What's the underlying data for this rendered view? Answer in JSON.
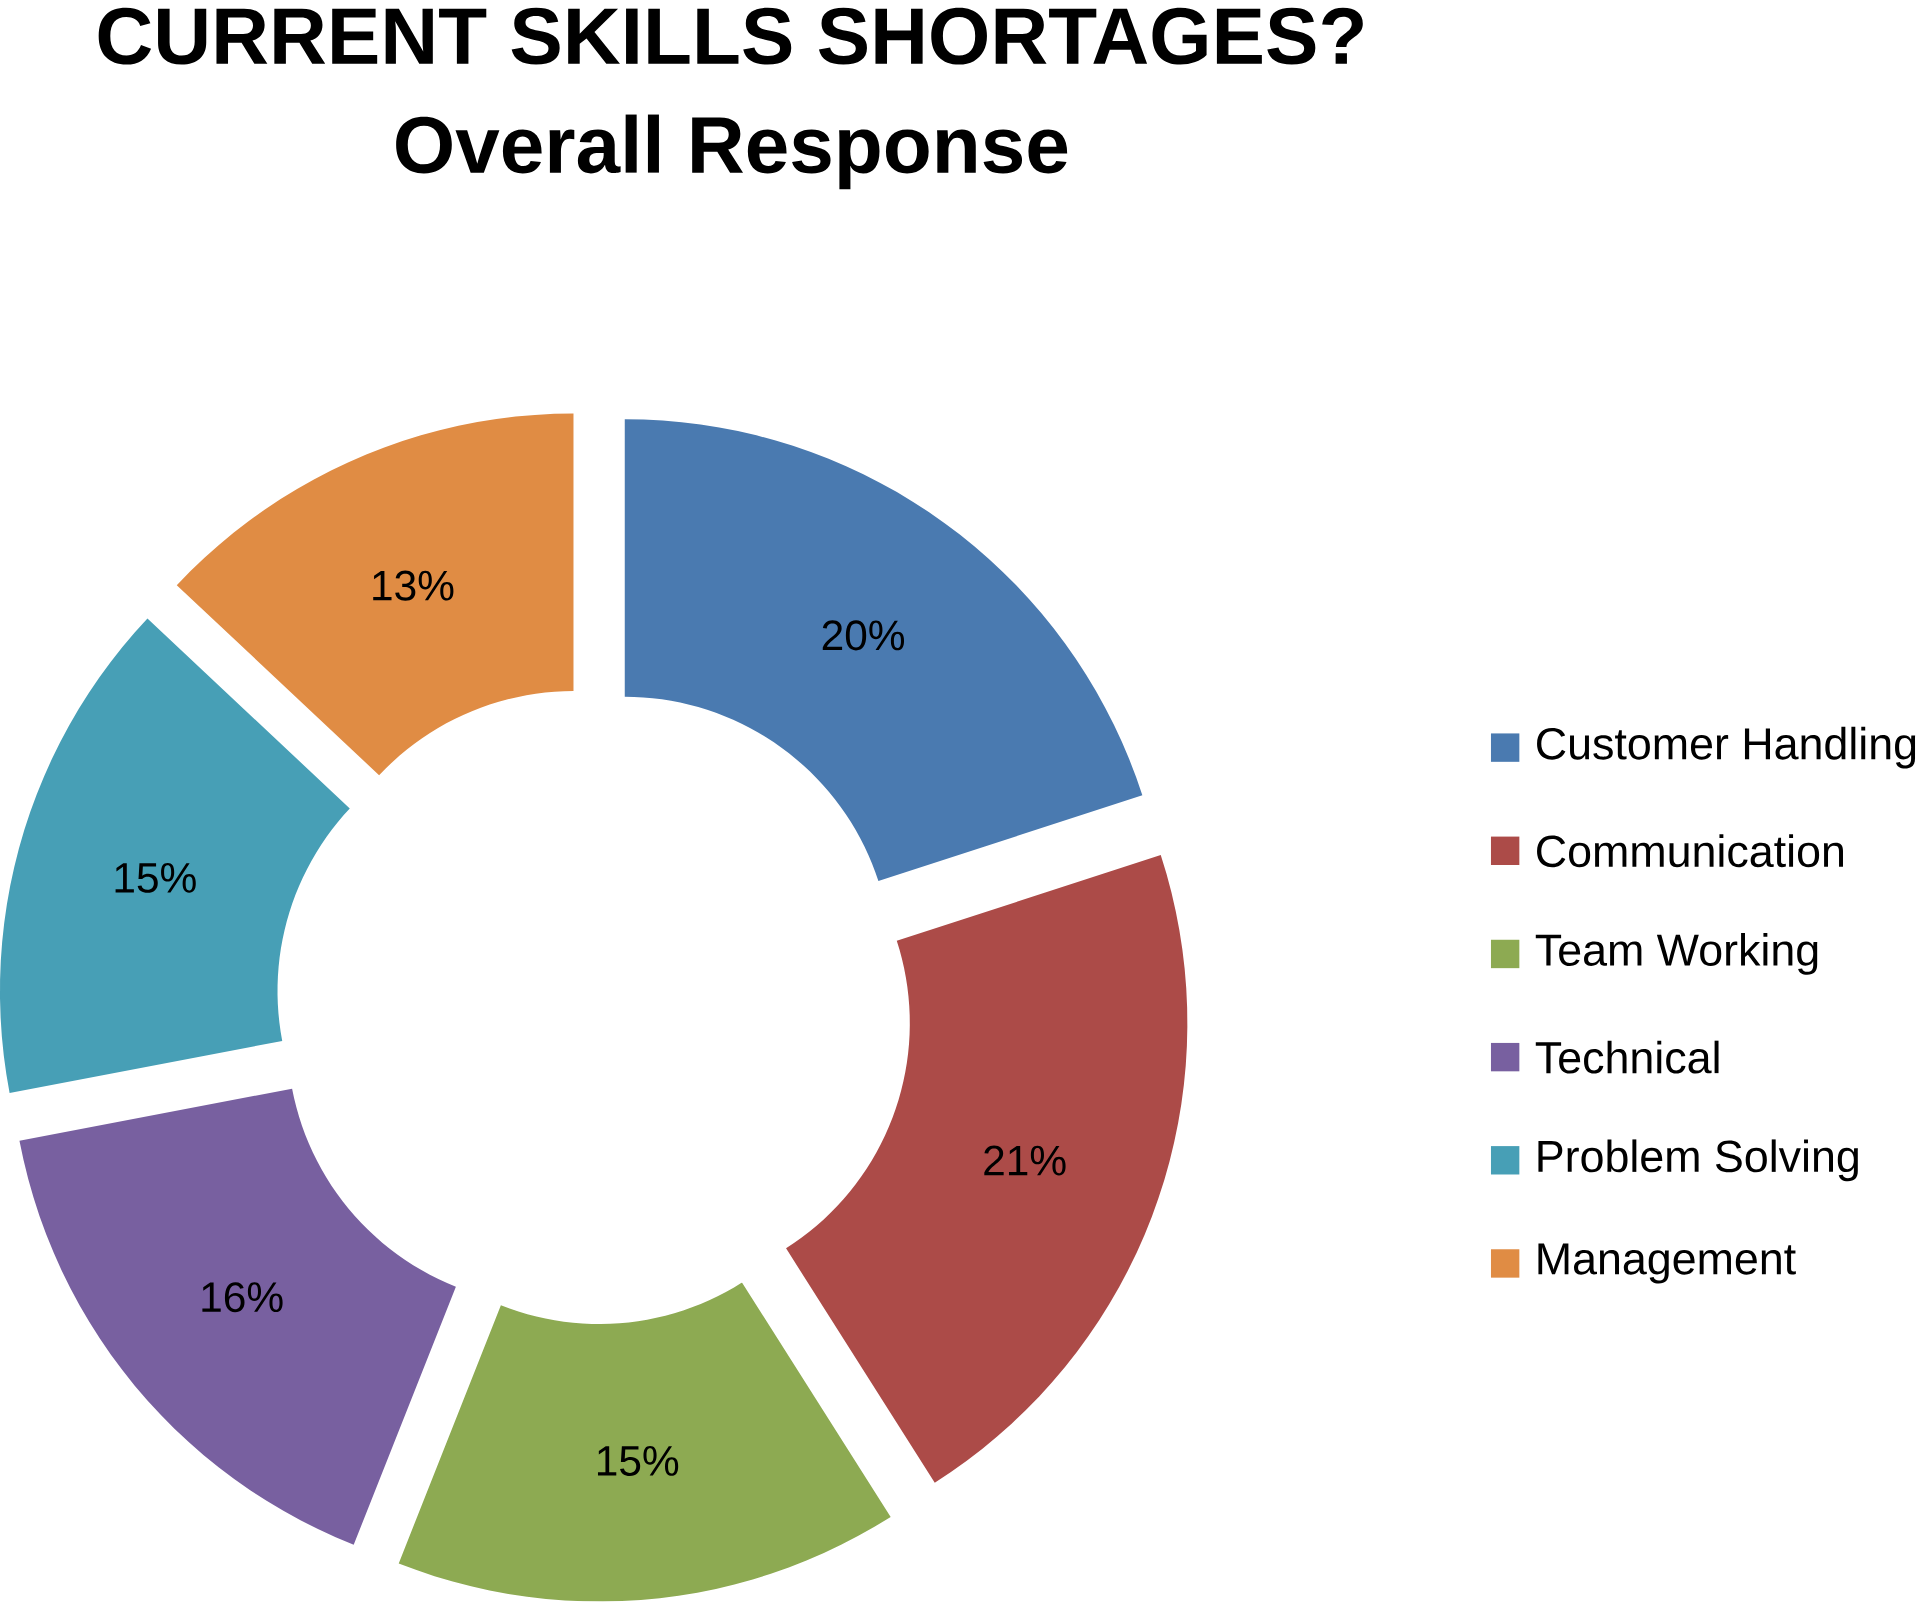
{
  "chart_data": {
    "type": "donut",
    "title": "CURRENT SKILLS SHORTAGES?",
    "subtitle": "Overall Response",
    "categories": [
      "Customer Handling",
      "Communication",
      "Team Working",
      "Technical",
      "Problem Solving",
      "Management"
    ],
    "values": [
      20,
      21,
      15,
      16,
      15,
      13
    ],
    "value_labels": [
      "20%",
      "21%",
      "15%",
      "16%",
      "15%",
      "13%"
    ],
    "colors": [
      "#4a7ab0",
      "#ac4b48",
      "#8daa52",
      "#7860a0",
      "#479fb6",
      "#e08c44"
    ],
    "legend": "right"
  }
}
